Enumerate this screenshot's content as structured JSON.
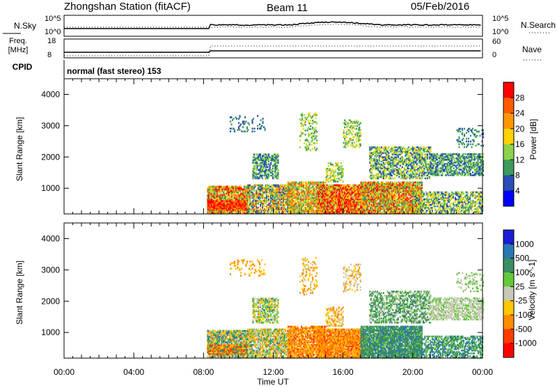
{
  "header": {
    "station": "Zhongshan Station (fitACF)",
    "beam": "Beam 11",
    "date": "05/Feb/2016",
    "program": "normal (fast stereo) 153"
  },
  "top_panels": {
    "nsky_label": "N.Sky",
    "nsearch_label": "N.Search",
    "freq_label_1": "Freq.",
    "freq_label_2": "[MHz]",
    "nave_label": "Nave",
    "cpid_label": "CPID",
    "nsky_ticks": [
      "10^5",
      "10^0"
    ],
    "nsearch_ticks": [
      "10^5",
      "10^0"
    ],
    "freq_ticks": [
      "18",
      "8"
    ],
    "nave_ticks": [
      "60",
      "0"
    ]
  },
  "chart_data": [
    {
      "type": "heatmap",
      "title": "Power",
      "xlabel": "",
      "ylabel": "Slant Range [km]",
      "colorbar_label": "Power [dB]",
      "xlim": [
        "00:00",
        "24:00"
      ],
      "ylim": [
        180,
        4500
      ],
      "x_ticks": [
        "00:00",
        "04:00",
        "08:00",
        "12:00",
        "16:00",
        "20:00",
        "00:00"
      ],
      "y_ticks": [
        1000,
        2000,
        3000,
        4000
      ],
      "colorbar_ticks": [
        "28",
        "24",
        "20",
        "16",
        "12",
        "8",
        "4"
      ],
      "colorbar_colors": [
        "#ff0000",
        "#ff5a00",
        "#ff9600",
        "#ffd200",
        "#8cd24b",
        "#3c9a5a",
        "#2a4fb4",
        "#0000ff"
      ]
    },
    {
      "type": "heatmap",
      "title": "Velocity",
      "xlabel": "Time UT",
      "ylabel": "Slant Range [km]",
      "colorbar_label": "Velocity [m s^-1]",
      "xlim": [
        "00:00",
        "24:00"
      ],
      "ylim": [
        180,
        4500
      ],
      "x_ticks": [
        "00:00",
        "04:00",
        "08:00",
        "12:00",
        "16:00",
        "20:00",
        "00:00"
      ],
      "y_ticks": [
        1000,
        2000,
        3000,
        4000
      ],
      "colorbar_ticks": [
        "1000",
        "500",
        "100",
        "25",
        "-25",
        "-100",
        "-500",
        "-1000"
      ],
      "colorbar_colors": [
        "#1c1cd2",
        "#2878b4",
        "#3c8c64",
        "#64c83c",
        "#c8c8b4",
        "#ffc800",
        "#ff8c00",
        "#ff3c00",
        "#ff0000"
      ]
    }
  ]
}
